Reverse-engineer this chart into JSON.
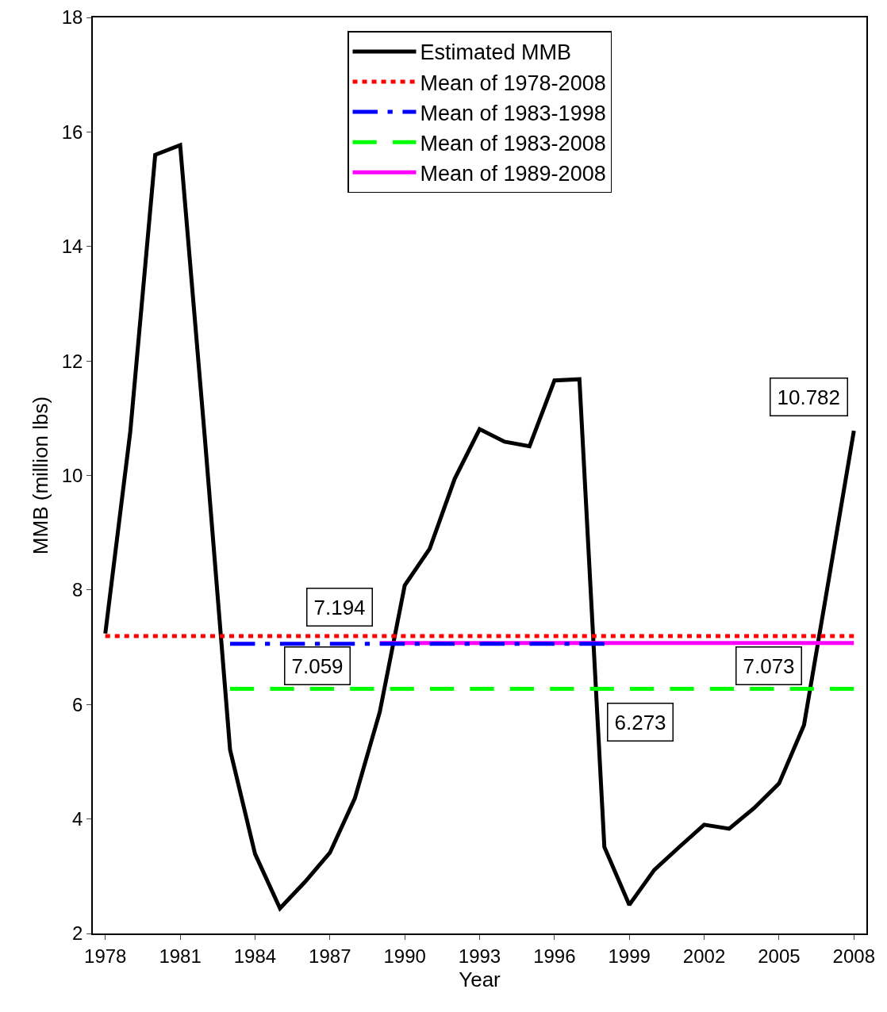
{
  "chart_data": {
    "type": "line",
    "xlabel": "Year",
    "ylabel": "MMB (million lbs)",
    "x": [
      1978,
      1979,
      1980,
      1981,
      1982,
      1983,
      1984,
      1985,
      1986,
      1987,
      1988,
      1989,
      1990,
      1991,
      1992,
      1993,
      1994,
      1995,
      1996,
      1997,
      1998,
      1999,
      2000,
      2001,
      2002,
      2003,
      2004,
      2005,
      2006,
      2007,
      2008
    ],
    "series": [
      {
        "name": "Estimated MMB",
        "color": "#000000",
        "line_style": "solid",
        "values": [
          7.24,
          10.76,
          15.6,
          15.77,
          10.6,
          5.21,
          3.39,
          2.44,
          2.9,
          3.41,
          4.36,
          5.87,
          8.08,
          8.72,
          9.94,
          10.81,
          10.59,
          10.51,
          11.66,
          11.68,
          3.51,
          2.5,
          3.11,
          3.51,
          3.9,
          3.83,
          4.19,
          4.62,
          5.64,
          8.2,
          10.782
        ]
      },
      {
        "name": "Mean of 1978-2008",
        "color": "#ff0000",
        "line_style": "dotted",
        "x": [
          1978,
          2008
        ],
        "values": [
          7.194,
          7.194
        ]
      },
      {
        "name": "Mean of 1983-1998",
        "color": "#0000ff",
        "line_style": "dashdot",
        "x": [
          1983,
          1998
        ],
        "values": [
          7.059,
          7.059
        ]
      },
      {
        "name": "Mean of 1983-2008",
        "color": "#00ff00",
        "line_style": "dashed",
        "x": [
          1983,
          2008
        ],
        "values": [
          6.273,
          6.273
        ]
      },
      {
        "name": "Mean of 1989-2008",
        "color": "#ff00ff",
        "line_style": "solid",
        "x": [
          1989,
          2008
        ],
        "values": [
          7.073,
          7.073
        ]
      }
    ],
    "annotations": [
      {
        "text": "7.194",
        "x": 1987.4,
        "y": 7.194
      },
      {
        "text": "7.059",
        "x": 1986.5,
        "y": 7.059
      },
      {
        "text": "6.273",
        "x": 1999.6,
        "y": 6.273
      },
      {
        "text": "7.073",
        "x": 2004.6,
        "y": 7.073
      },
      {
        "text": "10.782",
        "x": 2008,
        "y": 10.782
      }
    ],
    "xlim": [
      1977.5,
      2008.5
    ],
    "xticks": [
      1978,
      1981,
      1984,
      1987,
      1990,
      1993,
      1996,
      1999,
      2002,
      2005,
      2008
    ],
    "ylim": [
      2,
      18
    ],
    "yticks": [
      2,
      4,
      6,
      8,
      10,
      12,
      14,
      16,
      18
    ],
    "grid": false,
    "legend": "top",
    "marker": "none"
  }
}
